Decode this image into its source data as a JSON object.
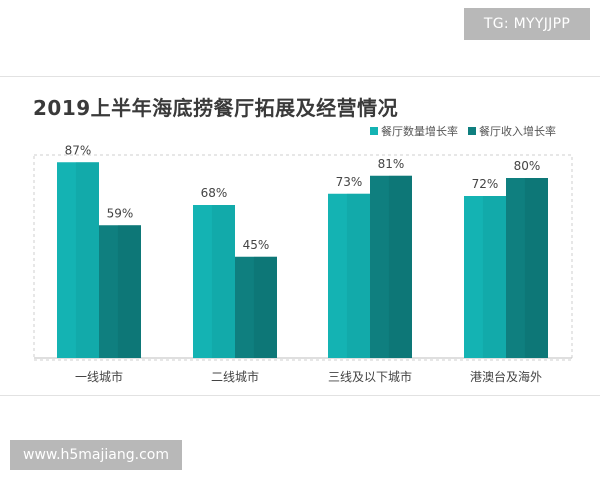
{
  "watermark_top": "TG: MYYJJPP",
  "watermark_bottom": "www.h5majiang.com",
  "colors": {
    "series1": "#14b3b3",
    "series1_dark": "#0f9b9b",
    "series2": "#0f7f7f",
    "series2_dark": "#0b6a6a",
    "gridline": "#cfcfcf",
    "axis": "#bfbfbf"
  },
  "chart_data": {
    "type": "bar",
    "title": "2019上半年海底捞餐厅拓展及经营情况",
    "categories": [
      "一线城市",
      "二线城市",
      "三线及以下城市",
      "港澳台及海外"
    ],
    "series": [
      {
        "name": "餐厅数量增长率",
        "values": [
          87,
          68,
          73,
          72
        ],
        "labels": [
          "87%",
          "68%",
          "73%",
          "72%"
        ]
      },
      {
        "name": "餐厅收入增长率",
        "values": [
          59,
          45,
          81,
          80
        ],
        "labels": [
          "59%",
          "45%",
          "81%",
          "80%"
        ]
      }
    ],
    "ylim": [
      0,
      100
    ],
    "legend_position": "top-right",
    "grid": false
  }
}
